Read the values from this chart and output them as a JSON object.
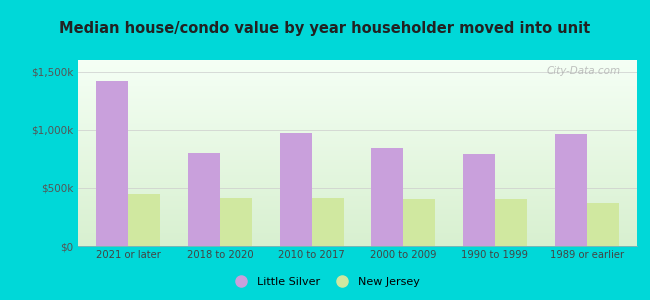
{
  "title": "Median house/condo value by year householder moved into unit",
  "categories": [
    "2021 or later",
    "2018 to 2020",
    "2010 to 2017",
    "2000 to 2009",
    "1990 to 1999",
    "1989 or earlier"
  ],
  "little_silver": [
    1420000,
    800000,
    975000,
    840000,
    790000,
    960000
  ],
  "new_jersey": [
    450000,
    415000,
    410000,
    405000,
    405000,
    370000
  ],
  "little_silver_color": "#c9a0dc",
  "new_jersey_color": "#d0e8a0",
  "background_outer": "#00d8d8",
  "background_inner_top": "#f5fff5",
  "background_inner_bottom": "#d8f0d0",
  "ylim": [
    0,
    1600000
  ],
  "yticks": [
    0,
    500000,
    1000000,
    1500000
  ],
  "ytick_labels": [
    "$0",
    "$500k",
    "$1,000k",
    "$1,500k"
  ],
  "bar_width": 0.35,
  "legend_labels": [
    "Little Silver",
    "New Jersey"
  ],
  "watermark": "City-Data.com"
}
